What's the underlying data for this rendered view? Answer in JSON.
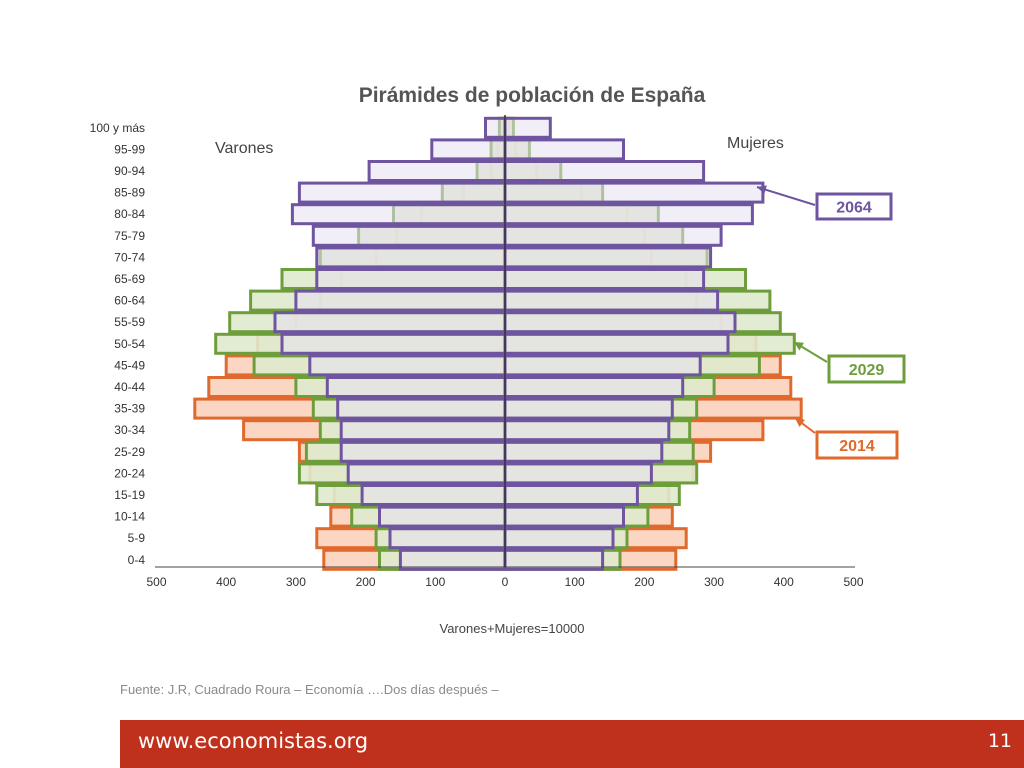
{
  "chart_data": {
    "type": "bar",
    "orientation": "horizontal-population-pyramid",
    "title": "Pirámides de población de España",
    "xlabel": "Varones+Mujeres=10000",
    "left_label": "Varones",
    "right_label": "Mujeres",
    "xlim": [
      -500,
      500
    ],
    "xticks": [
      500,
      400,
      300,
      200,
      100,
      0,
      100,
      200,
      300,
      400,
      500
    ],
    "categories": [
      "100 y más",
      "95-99",
      "90-94",
      "85-89",
      "80-84",
      "75-79",
      "70-74",
      "65-69",
      "60-64",
      "55-59",
      "50-54",
      "45-49",
      "40-44",
      "35-39",
      "30-34",
      "25-29",
      "20-24",
      "15-19",
      "10-14",
      "5-9",
      "0-4"
    ],
    "series": [
      {
        "name": "2014",
        "color": "#e0692d",
        "fill": "#fbd3bd",
        "varones": [
          3,
          10,
          20,
          60,
          120,
          155,
          185,
          235,
          265,
          300,
          355,
          400,
          425,
          445,
          375,
          295,
          280,
          245,
          250,
          270,
          260
        ],
        "mujeres": [
          5,
          15,
          45,
          110,
          175,
          200,
          210,
          260,
          275,
          310,
          360,
          395,
          410,
          425,
          370,
          295,
          270,
          235,
          240,
          260,
          245
        ]
      },
      {
        "name": "2029",
        "color": "#6e9e3c",
        "fill": "#dfeacd",
        "varones": [
          8,
          20,
          40,
          90,
          160,
          210,
          265,
          320,
          365,
          395,
          415,
          360,
          300,
          275,
          265,
          285,
          295,
          270,
          220,
          185,
          180
        ],
        "mujeres": [
          12,
          35,
          80,
          140,
          220,
          255,
          290,
          345,
          380,
          395,
          415,
          365,
          300,
          275,
          265,
          270,
          275,
          250,
          205,
          175,
          165
        ]
      },
      {
        "name": "2064",
        "color": "#6f55a0",
        "fill": "#e6e0f0",
        "varones": [
          28,
          105,
          195,
          295,
          305,
          275,
          270,
          270,
          300,
          330,
          320,
          280,
          255,
          240,
          235,
          235,
          225,
          205,
          180,
          165,
          150
        ],
        "mujeres": [
          65,
          170,
          285,
          370,
          355,
          310,
          295,
          285,
          305,
          330,
          320,
          280,
          255,
          240,
          235,
          225,
          210,
          190,
          170,
          155,
          140
        ]
      }
    ],
    "callouts": [
      "2064",
      "2029",
      "2014"
    ],
    "grid": false,
    "legend": "right callout boxes"
  },
  "source_text": "Fuente: J.R, Cuadrado Roura – Economía ….Dos días después –",
  "footer": {
    "site": "www.economistas.org",
    "page_number": "11",
    "bar_color": "#c0311d"
  }
}
